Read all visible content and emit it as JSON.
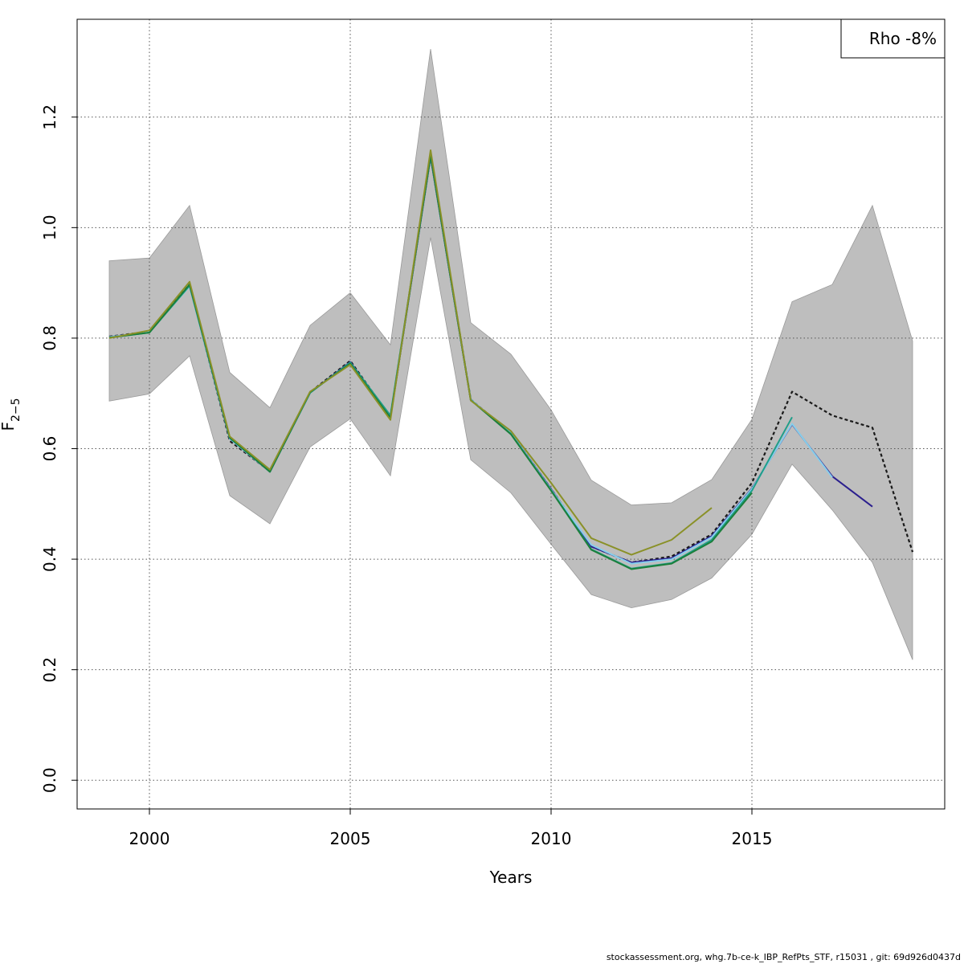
{
  "chart_data": {
    "type": "line",
    "xlabel": "Years",
    "ylabel_main": "F",
    "ylabel_sub": "2−5",
    "xlim": [
      1998.2,
      2019.8
    ],
    "ylim": [
      -0.052,
      1.377
    ],
    "xticks": [
      2000,
      2005,
      2010,
      2015
    ],
    "yticks": [
      0.0,
      0.2,
      0.4,
      0.6,
      0.8,
      1.0,
      1.2
    ],
    "ytick_labels": [
      "0.0",
      "0.2",
      "0.4",
      "0.6",
      "0.8",
      "1.0",
      "1.2"
    ],
    "grid": true,
    "legend": {
      "text": "Rho -8%",
      "placement": "top-right"
    },
    "band": {
      "color": "#bebebe",
      "x": [
        1999,
        2000,
        2001,
        2002,
        2003,
        2004,
        2005,
        2006,
        2007,
        2008,
        2009,
        2010,
        2011,
        2012,
        2013,
        2014,
        2015,
        2016,
        2017,
        2018,
        2019
      ],
      "upper": [
        0.94,
        0.945,
        1.04,
        0.738,
        0.674,
        0.823,
        0.882,
        0.788,
        1.323,
        0.828,
        0.771,
        0.67,
        0.543,
        0.498,
        0.502,
        0.544,
        0.653,
        0.866,
        0.897,
        1.04,
        0.795
      ],
      "lower": [
        0.686,
        0.699,
        0.768,
        0.515,
        0.464,
        0.603,
        0.654,
        0.551,
        0.982,
        0.58,
        0.52,
        0.427,
        0.336,
        0.312,
        0.327,
        0.366,
        0.445,
        0.572,
        0.489,
        0.394,
        0.218
      ]
    },
    "series": [
      {
        "color": "#1a1a1a",
        "dashed": true,
        "width": 2.2,
        "x": [
          1999,
          2000,
          2001,
          2002,
          2003,
          2004,
          2005,
          2006,
          2007,
          2008,
          2009,
          2010,
          2011,
          2012,
          2013,
          2014,
          2015,
          2016,
          2017,
          2018,
          2019
        ],
        "y": [
          0.803,
          0.812,
          0.897,
          0.614,
          0.559,
          0.702,
          0.759,
          0.657,
          1.13,
          0.689,
          0.628,
          0.527,
          0.423,
          0.394,
          0.405,
          0.445,
          0.538,
          0.703,
          0.66,
          0.638,
          0.413
        ]
      },
      {
        "color": "#2b1f8e",
        "dashed": false,
        "width": 2,
        "x": [
          1999,
          2000,
          2001,
          2002,
          2003,
          2004,
          2005,
          2006,
          2007,
          2008,
          2009,
          2010,
          2011,
          2012,
          2013,
          2014,
          2015,
          2016,
          2017,
          2018
        ],
        "y": [
          0.802,
          0.811,
          0.895,
          0.618,
          0.558,
          0.701,
          0.757,
          0.656,
          1.128,
          0.688,
          0.628,
          0.527,
          0.423,
          0.394,
          0.402,
          0.442,
          0.528,
          0.644,
          0.55,
          0.495
        ]
      },
      {
        "color": "#87ceeb",
        "dashed": false,
        "width": 2,
        "x": [
          1999,
          2000,
          2001,
          2002,
          2003,
          2004,
          2005,
          2006,
          2007,
          2008,
          2009,
          2010,
          2011,
          2012,
          2013,
          2014,
          2015,
          2016,
          2017
        ],
        "y": [
          0.802,
          0.811,
          0.894,
          0.618,
          0.558,
          0.701,
          0.756,
          0.657,
          1.13,
          0.689,
          0.628,
          0.526,
          0.426,
          0.392,
          0.4,
          0.44,
          0.527,
          0.645,
          0.548
        ]
      },
      {
        "color": "#1f9e89",
        "dashed": false,
        "width": 2,
        "x": [
          1999,
          2000,
          2001,
          2002,
          2003,
          2004,
          2005,
          2006,
          2007,
          2008,
          2009,
          2010,
          2011,
          2012,
          2013,
          2014,
          2015,
          2016
        ],
        "y": [
          0.801,
          0.81,
          0.895,
          0.619,
          0.559,
          0.701,
          0.756,
          0.66,
          1.13,
          0.688,
          0.627,
          0.525,
          0.418,
          0.383,
          0.393,
          0.435,
          0.524,
          0.657
        ]
      },
      {
        "color": "#1b7f3b",
        "dashed": false,
        "width": 2,
        "x": [
          1999,
          2000,
          2001,
          2002,
          2003,
          2004,
          2005,
          2006,
          2007,
          2008,
          2009,
          2010,
          2011,
          2012,
          2013,
          2014,
          2015
        ],
        "y": [
          0.801,
          0.81,
          0.897,
          0.62,
          0.558,
          0.702,
          0.754,
          0.656,
          1.13,
          0.688,
          0.626,
          0.524,
          0.417,
          0.382,
          0.392,
          0.432,
          0.52
        ]
      },
      {
        "color": "#8a9128",
        "dashed": false,
        "width": 2,
        "x": [
          1999,
          2000,
          2001,
          2002,
          2003,
          2004,
          2005,
          2006,
          2007,
          2008,
          2009,
          2010,
          2011,
          2012,
          2013,
          2014
        ],
        "y": [
          0.8,
          0.814,
          0.902,
          0.622,
          0.562,
          0.703,
          0.752,
          0.652,
          1.14,
          0.687,
          0.632,
          0.538,
          0.438,
          0.408,
          0.435,
          0.493
        ]
      }
    ]
  },
  "footer": {
    "text": "stockassessment.org, whg.7b-ce-k_IBP_RefPts_STF, r15031 , git: 69d926d0437d"
  }
}
